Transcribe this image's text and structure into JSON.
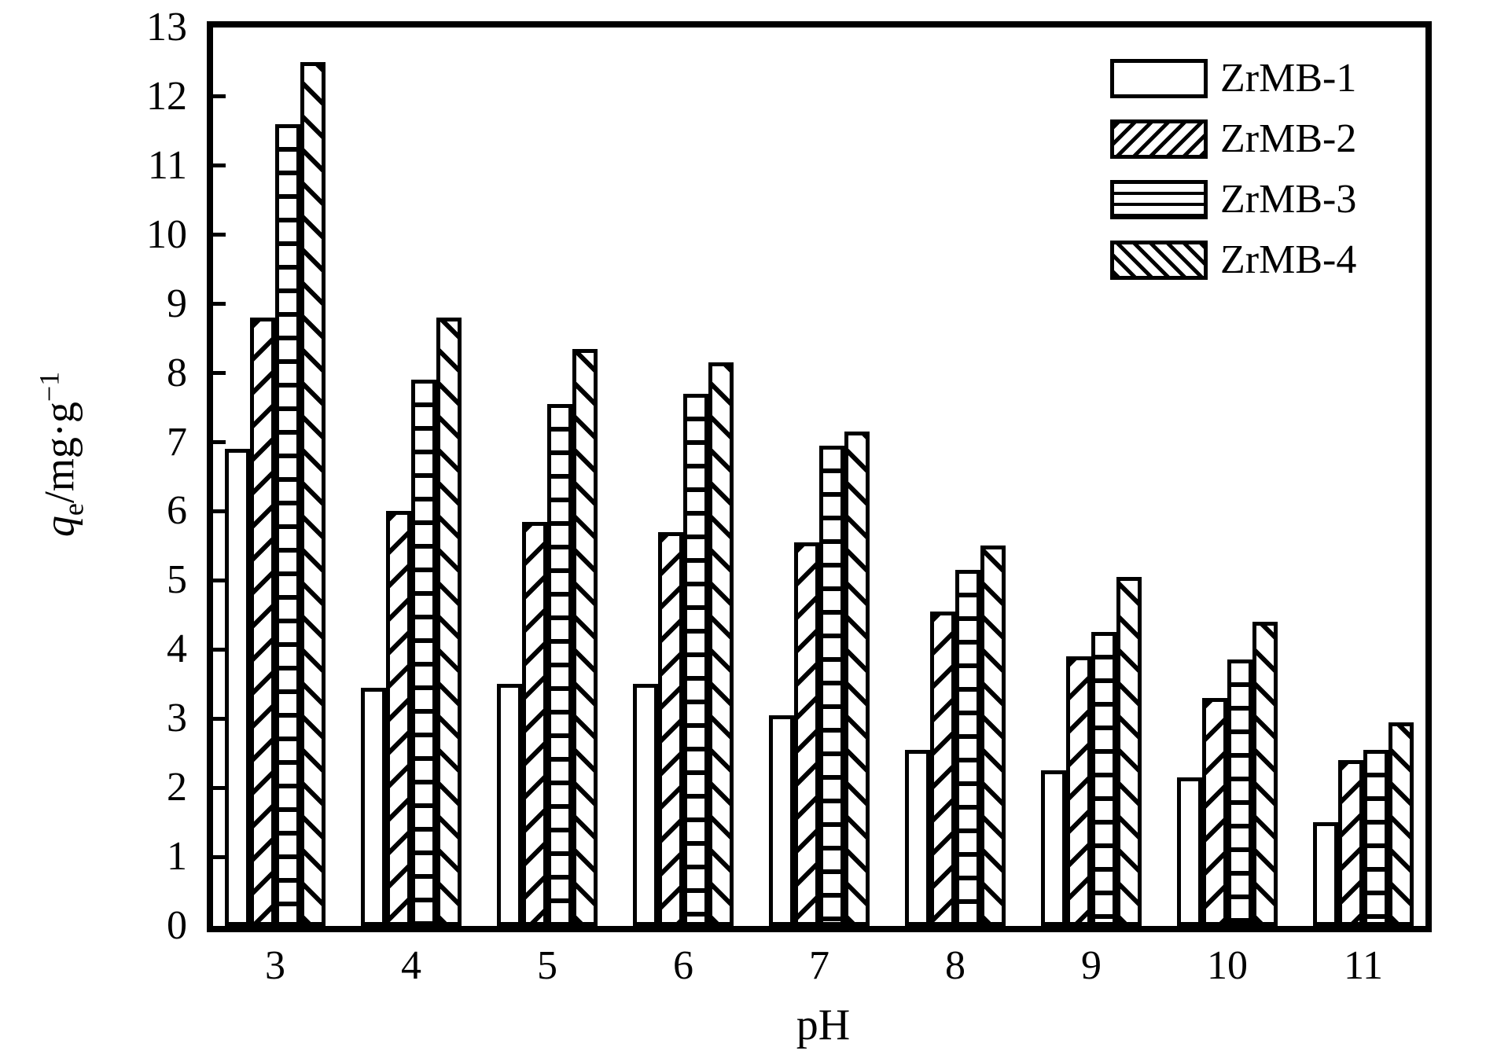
{
  "chart_data": {
    "type": "bar",
    "title": "",
    "xlabel": "pH",
    "ylabel_text": "qe/mg·g−1",
    "ylabel_parts": {
      "var": "q",
      "sub": "e",
      "unit": "/mg·g",
      "sup": "−1"
    },
    "categories": [
      "3",
      "4",
      "5",
      "6",
      "7",
      "8",
      "9",
      "10",
      "11"
    ],
    "series": [
      {
        "name": "ZrMB-1",
        "pattern": "plain",
        "values": [
          6.9,
          3.45,
          3.5,
          3.5,
          3.05,
          2.55,
          2.25,
          2.15,
          1.5
        ]
      },
      {
        "name": "ZrMB-2",
        "pattern": "diagonal-forward",
        "values": [
          8.8,
          6.0,
          5.85,
          5.7,
          5.55,
          4.55,
          3.9,
          3.3,
          2.4
        ]
      },
      {
        "name": "ZrMB-3",
        "pattern": "horizontal-lines",
        "values": [
          11.6,
          7.9,
          7.55,
          7.7,
          6.95,
          5.15,
          4.25,
          3.85,
          2.55
        ]
      },
      {
        "name": "ZrMB-4",
        "pattern": "diagonal-back",
        "values": [
          12.5,
          8.8,
          8.35,
          8.15,
          7.15,
          5.5,
          5.05,
          4.4,
          2.95
        ]
      }
    ],
    "ylim": [
      0,
      13
    ],
    "yticks": [
      0,
      1,
      2,
      3,
      4,
      5,
      6,
      7,
      8,
      9,
      10,
      11,
      12,
      13
    ],
    "legend_position": "top-right",
    "grid": false,
    "colors": {
      "foreground": "#000000",
      "background": "#ffffff"
    }
  }
}
